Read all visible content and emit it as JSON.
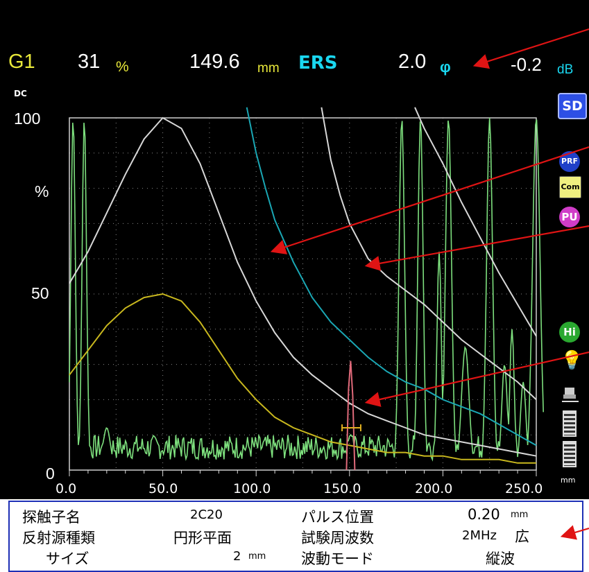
{
  "header": {
    "gain_label": "G1",
    "gate_value": "31",
    "gate_unit": "%",
    "distance_value": "149.6",
    "distance_unit": "mm",
    "mode_label": "ERS",
    "angle_value": "2.0",
    "angle_unit": "φ",
    "db_value": "-0.2",
    "db_unit": "dB"
  },
  "y_axis": {
    "dc_label": "DC",
    "top": "100",
    "unit": "%",
    "mid": "50",
    "zero": "0"
  },
  "x_axis": {
    "ticks": [
      "0.0",
      "50.0",
      "100.0",
      "150.0",
      "200.0",
      "250.0"
    ],
    "unit": "mm"
  },
  "indicators": {
    "sd": "SD",
    "prf": "PRF",
    "com": "Com",
    "pu": "PU",
    "hi": "Hi"
  },
  "params": {
    "probe_name_label": "探触子名",
    "probe_name_value": "2C20",
    "reflector_type_label": "反射源種類",
    "reflector_type_value": "円形平面",
    "size_label": "サイズ",
    "size_value": "2",
    "size_unit": "mm",
    "pulse_pos_label": "パルス位置",
    "pulse_pos_value": "0.20",
    "pulse_pos_unit": "mm",
    "freq_label": "試験周波数",
    "freq_value": "2MHz",
    "freq_band": "広",
    "wave_mode_label": "波動モード",
    "wave_mode_value": "縦波"
  },
  "colors": {
    "background": "#000000",
    "grid": "#8a8a8a",
    "echo": "#7ee07e",
    "dgs_white": "#d8d8d8",
    "dgs_cyan": "#1aa7b4",
    "dgs_yellow": "#c9b81e",
    "flaw_echo": "#e06a7a",
    "gate": "#e0b020",
    "annotation_arrow": "#e01414",
    "panel_border": "#1d2fb5"
  },
  "chart_data": {
    "type": "line",
    "x_range": [
      0,
      250
    ],
    "y_range": [
      0,
      100
    ],
    "grid": true,
    "series": [
      {
        "color": "white",
        "x": [
          0,
          10,
          20,
          30,
          40,
          50,
          60,
          70,
          80,
          90,
          100,
          110,
          120,
          130,
          140,
          150,
          160,
          170,
          180,
          190,
          200,
          210,
          220,
          230,
          240,
          250
        ],
        "y": [
          53,
          62,
          73,
          84,
          94,
          100,
          97,
          87,
          73,
          59,
          48,
          39,
          32,
          27,
          23,
          19,
          16,
          14,
          12,
          10,
          9,
          8,
          7,
          6,
          5,
          4
        ]
      },
      {
        "color": "yellow",
        "x": [
          0,
          10,
          20,
          30,
          40,
          50,
          60,
          70,
          80,
          90,
          100,
          110,
          120,
          130,
          140,
          150,
          160,
          170,
          180,
          190,
          200,
          210,
          220,
          230,
          240,
          250
        ],
        "y": [
          27,
          34,
          41,
          46,
          49,
          50,
          48,
          42,
          34,
          26,
          20,
          15,
          12,
          10,
          8,
          7,
          6,
          5,
          5,
          4,
          4,
          3,
          3,
          3,
          2,
          2
        ]
      },
      {
        "color": "cyan",
        "x": [
          95,
          100,
          105,
          110,
          120,
          130,
          140,
          150,
          160,
          170,
          180,
          190,
          200,
          210,
          220,
          230,
          240,
          250
        ],
        "y": [
          103,
          90,
          80,
          71,
          59,
          49,
          42,
          37,
          32,
          28,
          25,
          23,
          20,
          18,
          16,
          13,
          10,
          7
        ]
      },
      {
        "color": "white",
        "x": [
          135,
          140,
          145,
          150,
          160,
          170,
          180,
          190,
          200,
          210,
          220,
          230,
          240,
          250
        ],
        "y": [
          103,
          88,
          78,
          70,
          60,
          55,
          51,
          47,
          42,
          37,
          33,
          29,
          25,
          20
        ]
      },
      {
        "color": "white",
        "x": [
          185,
          190,
          200,
          210,
          220,
          230,
          240,
          250
        ],
        "y": [
          103,
          97,
          87,
          76,
          66,
          56,
          47,
          38
        ]
      }
    ],
    "gate": {
      "x": [
        146,
        156
      ],
      "y": 12
    },
    "flaw_peak": {
      "x": 150.6,
      "y": 31
    }
  }
}
